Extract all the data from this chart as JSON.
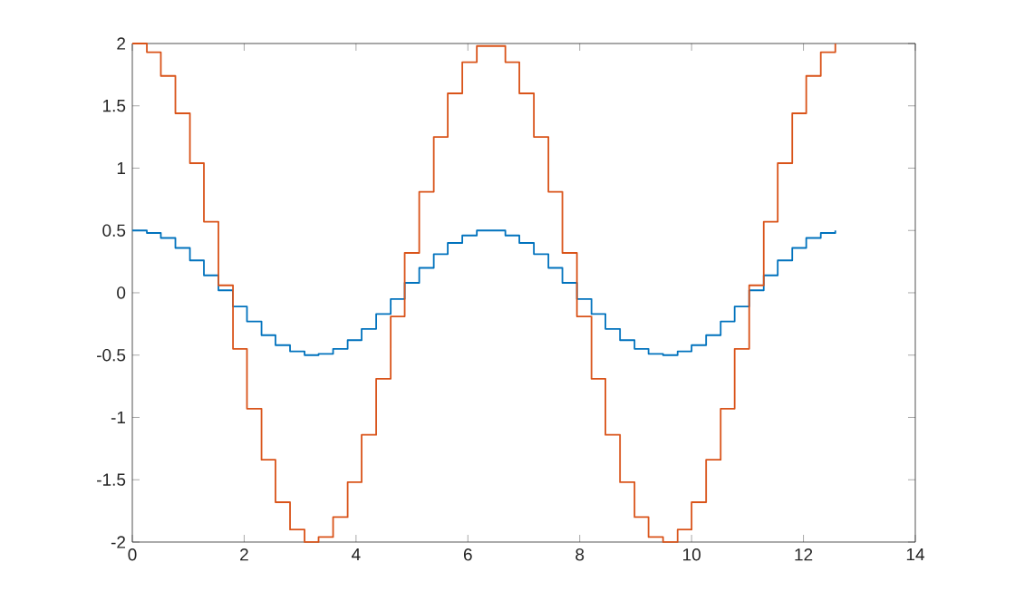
{
  "chart_data": {
    "type": "step",
    "x": [
      0,
      0.26,
      0.51,
      0.77,
      1.03,
      1.28,
      1.54,
      1.8,
      2.05,
      2.31,
      2.56,
      2.82,
      3.08,
      3.33,
      3.59,
      3.85,
      4.1,
      4.36,
      4.62,
      4.87,
      5.13,
      5.39,
      5.64,
      5.9,
      6.16,
      6.41,
      6.67,
      6.92,
      7.18,
      7.44,
      7.69,
      7.95,
      8.21,
      8.46,
      8.72,
      8.98,
      9.23,
      9.49,
      9.75,
      10.0,
      10.26,
      10.52,
      10.77,
      11.03,
      11.29,
      11.54,
      11.8,
      12.05,
      12.31,
      12.57
    ],
    "series": [
      {
        "color": "#0072bd",
        "values": [
          0.5,
          0.48,
          0.44,
          0.36,
          0.26,
          0.14,
          0.02,
          -0.11,
          -0.23,
          -0.34,
          -0.42,
          -0.47,
          -0.5,
          -0.49,
          -0.45,
          -0.38,
          -0.29,
          -0.17,
          -0.05,
          0.08,
          0.2,
          0.31,
          0.4,
          0.46,
          0.5,
          0.5,
          0.46,
          0.4,
          0.31,
          0.2,
          0.08,
          -0.05,
          -0.17,
          -0.29,
          -0.38,
          -0.45,
          -0.49,
          -0.5,
          -0.47,
          -0.42,
          -0.34,
          -0.23,
          -0.11,
          0.02,
          0.14,
          0.26,
          0.36,
          0.44,
          0.48,
          0.5
        ]
      },
      {
        "color": "#d95319",
        "values": [
          2,
          1.93,
          1.74,
          1.44,
          1.04,
          0.57,
          0.06,
          -0.45,
          -0.93,
          -1.34,
          -1.68,
          -1.9,
          -2,
          -1.96,
          -1.8,
          -1.52,
          -1.14,
          -0.69,
          -0.19,
          0.32,
          0.81,
          1.25,
          1.6,
          1.85,
          1.98,
          1.98,
          1.85,
          1.6,
          1.25,
          0.81,
          0.32,
          -0.19,
          -0.69,
          -1.14,
          -1.52,
          -1.8,
          -1.96,
          -2,
          -1.9,
          -1.68,
          -1.34,
          -0.93,
          -0.45,
          0.06,
          0.57,
          1.04,
          1.44,
          1.74,
          1.93,
          2
        ]
      }
    ],
    "xlim": [
      0,
      14
    ],
    "xticks": [
      0,
      2,
      4,
      6,
      8,
      10,
      12,
      14
    ],
    "ylim": [
      -2,
      2
    ],
    "yticks": [
      -2,
      -1.5,
      -1,
      -0.5,
      0,
      0.5,
      1,
      1.5,
      2
    ]
  }
}
